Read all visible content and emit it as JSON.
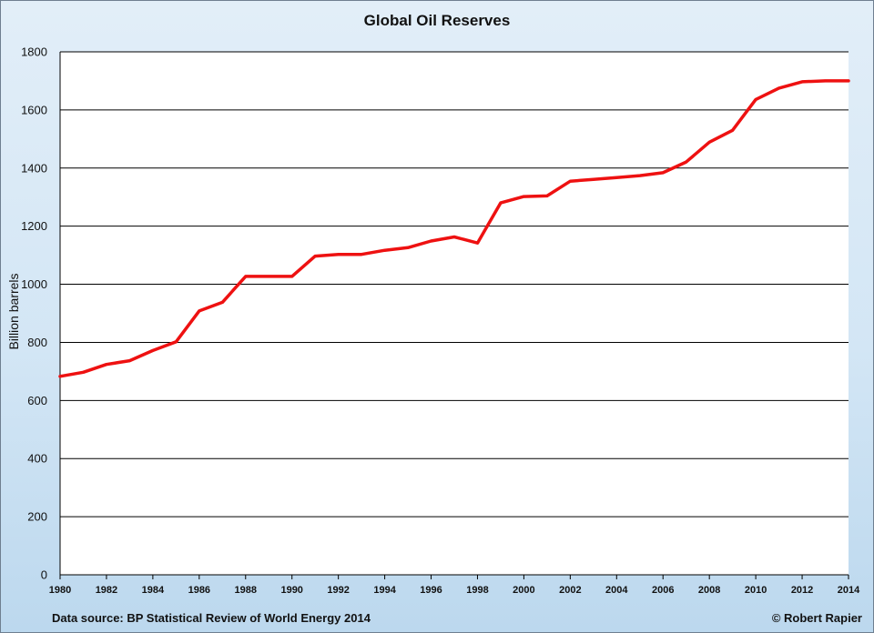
{
  "chart_data": {
    "type": "line",
    "title": "Global Oil Reserves",
    "xlabel": "",
    "ylabel": "Billion barrels",
    "xlim": [
      1980,
      2014
    ],
    "ylim": [
      0,
      1800
    ],
    "xticks": [
      "1980",
      "1982",
      "1984",
      "1986",
      "1988",
      "1990",
      "1992",
      "1994",
      "1996",
      "1998",
      "2000",
      "2002",
      "2004",
      "2006",
      "2008",
      "2010",
      "2012",
      "2014"
    ],
    "yticks": [
      "0",
      "200",
      "400",
      "600",
      "800",
      "1000",
      "1200",
      "1400",
      "1600",
      "1800"
    ],
    "grid": "horizontal",
    "legend": "none",
    "series": [
      {
        "color": "#ee1111",
        "x": [
          1980,
          1981,
          1982,
          1983,
          1984,
          1985,
          1986,
          1987,
          1988,
          1989,
          1990,
          1991,
          1992,
          1993,
          1994,
          1995,
          1996,
          1997,
          1998,
          1999,
          2000,
          2001,
          2002,
          2003,
          2004,
          2005,
          2006,
          2007,
          2008,
          2009,
          2010,
          2011,
          2012,
          2013,
          2014
        ],
        "values": [
          683,
          697,
          724,
          737,
          772,
          802,
          908,
          938,
          1027,
          1027,
          1027,
          1097,
          1103,
          1103,
          1117,
          1126,
          1149,
          1163,
          1142,
          1280,
          1302,
          1304,
          1355,
          1361,
          1367,
          1374,
          1384,
          1421,
          1489,
          1530,
          1636,
          1675,
          1697,
          1700,
          1700
        ]
      }
    ]
  },
  "footer": {
    "source": "Data source: BP Statistical Review of World Energy 2014",
    "credit": "© Robert Rapier"
  },
  "colors": {
    "line": "#ee1111",
    "grid": "#000000",
    "plot_background": "#ffffff"
  }
}
